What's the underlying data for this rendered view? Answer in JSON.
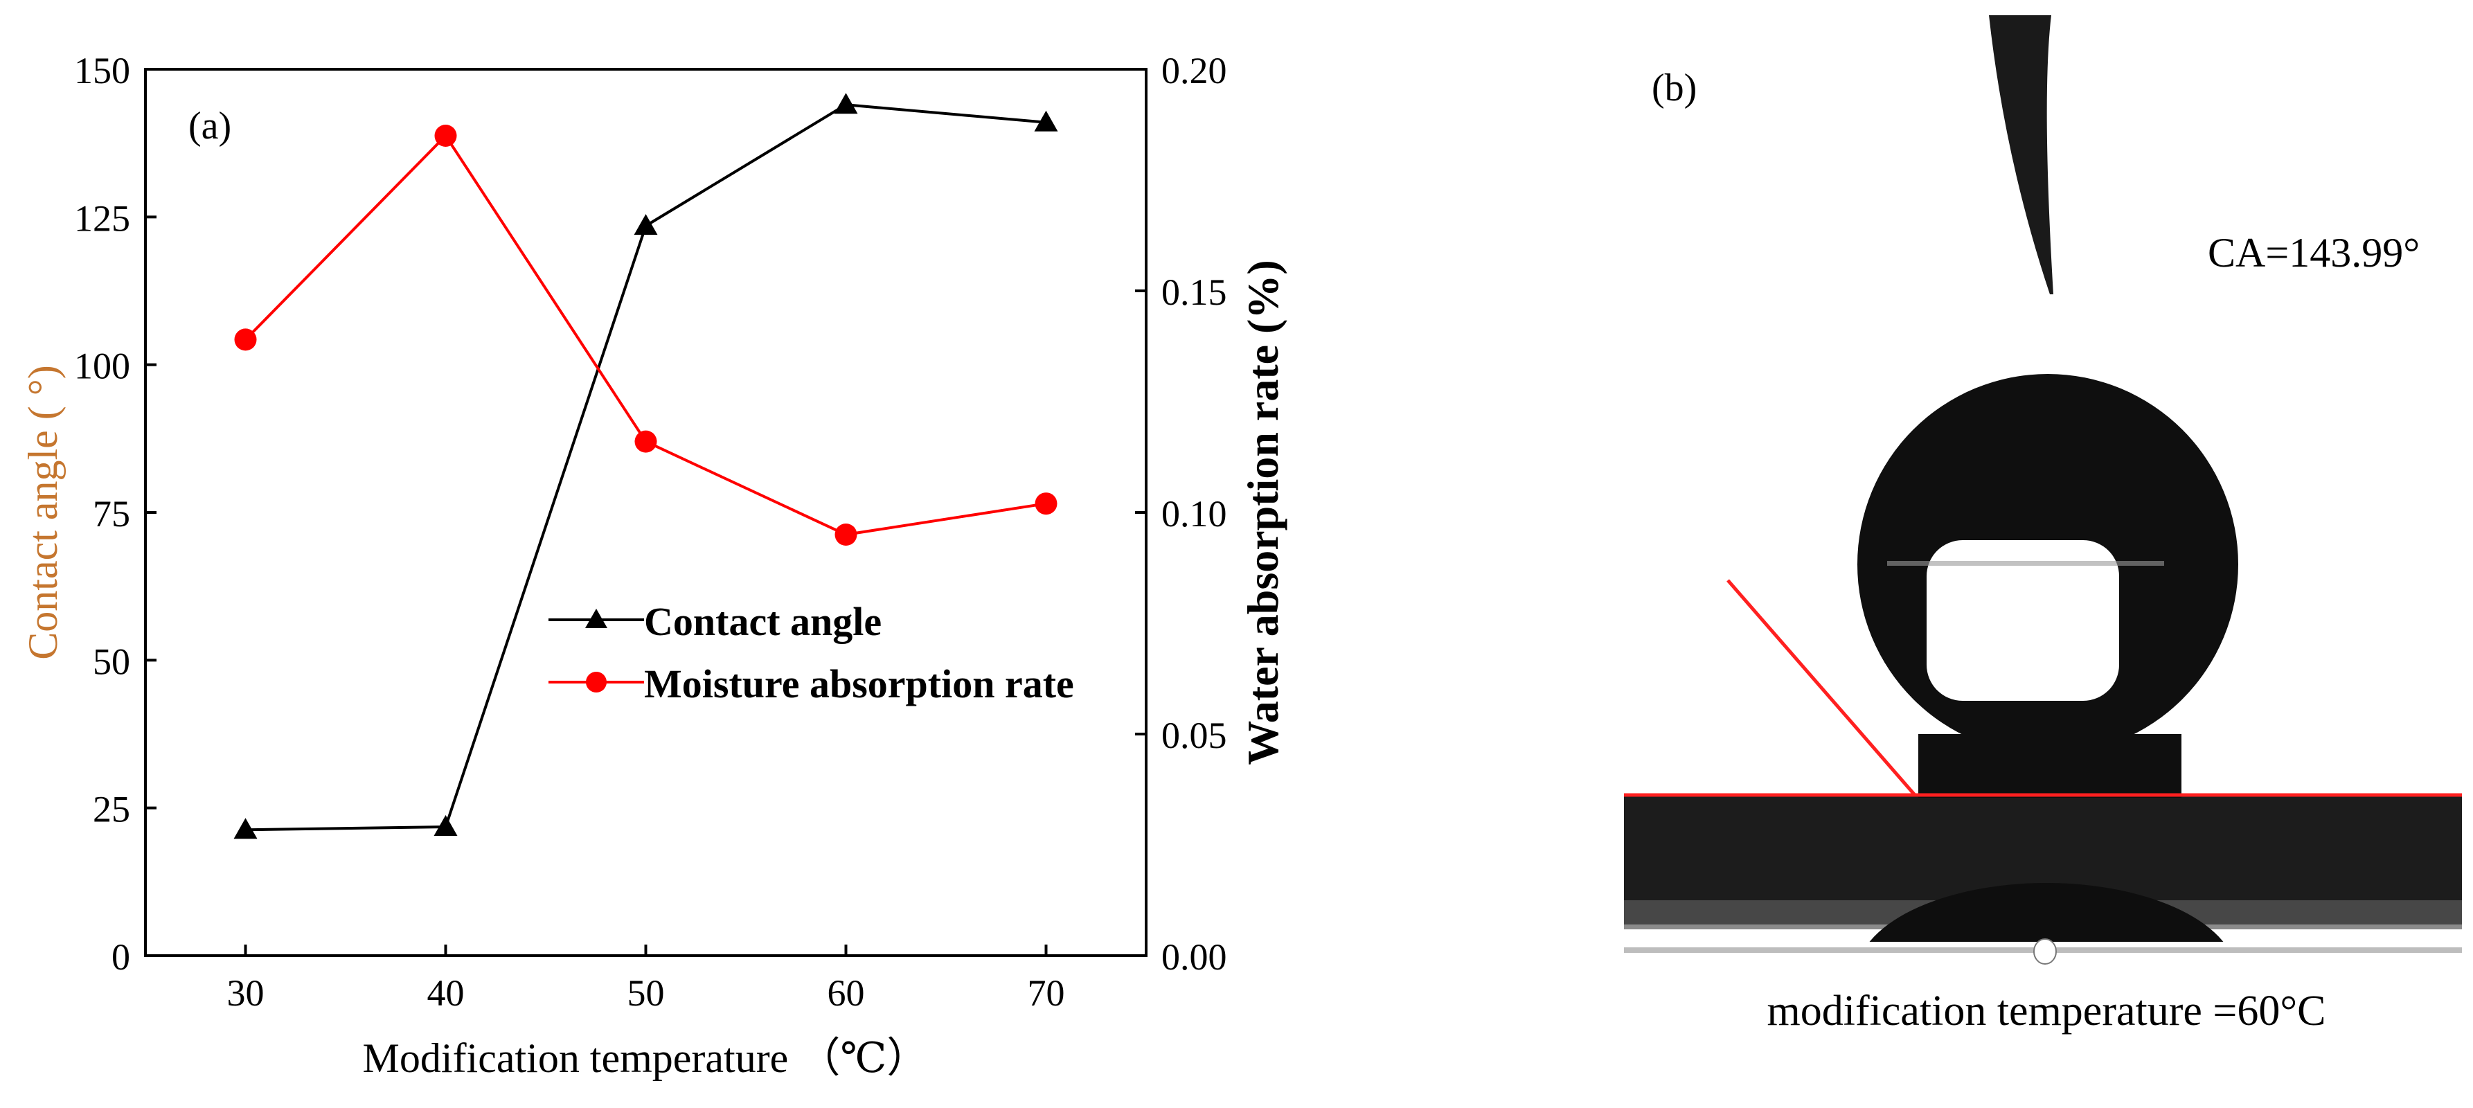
{
  "panel_a": {
    "label": "(a)",
    "chart_data": {
      "type": "line",
      "title": "",
      "xlabel": "Modification temperature （℃）",
      "ylabel_left": "Contact angle ( °)",
      "ylabel_right": "Water absorption rate (%)",
      "x": [
        30,
        40,
        50,
        60,
        70
      ],
      "xlim": [
        25,
        75
      ],
      "xticks": [
        "30",
        "40",
        "50",
        "60",
        "70"
      ],
      "ylim_left": [
        0,
        150
      ],
      "yticks_left": [
        "0",
        "25",
        "50",
        "75",
        "100",
        "125",
        "150"
      ],
      "ylim_right": [
        0.0,
        0.2
      ],
      "yticks_right": [
        "0.00",
        "0.05",
        "0.10",
        "0.15",
        "0.20"
      ],
      "grid": false,
      "legend_position": "center",
      "series": [
        {
          "name": "Contact angle",
          "axis": "left",
          "marker": "triangle",
          "color": "#000000",
          "values": [
            21.3,
            21.8,
            123.5,
            144.0,
            141.0
          ]
        },
        {
          "name": "Moisture absorption rate",
          "axis": "right",
          "marker": "circle",
          "color": "#ff0000",
          "values": [
            0.139,
            0.185,
            0.116,
            0.095,
            0.102
          ]
        }
      ]
    }
  },
  "panel_b": {
    "label": "(b)",
    "ca_text": "CA=143.99°",
    "caption": "modification temperature =60°C"
  }
}
